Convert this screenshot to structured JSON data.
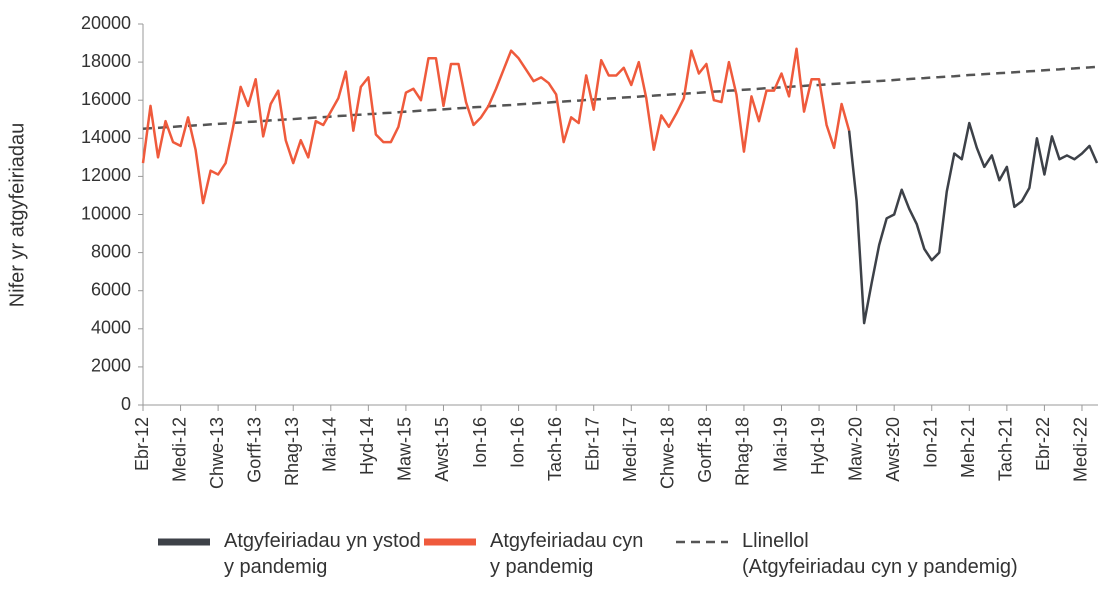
{
  "chart_data": {
    "type": "line",
    "y_label": "Nifer yr atgyfeiriadau",
    "ylim": [
      0,
      20000
    ],
    "yticks": [
      0,
      2000,
      4000,
      6000,
      8000,
      10000,
      12000,
      14000,
      16000,
      18000,
      20000
    ],
    "grid": false,
    "legend": "bottom",
    "categories": [
      "Ebr-12",
      null,
      null,
      null,
      null,
      "Medi-12",
      null,
      null,
      null,
      null,
      "Chwe-13",
      null,
      null,
      null,
      null,
      "Gorff-13",
      null,
      null,
      null,
      null,
      "Rhag-13",
      null,
      null,
      null,
      null,
      "Mai-14",
      null,
      null,
      null,
      null,
      "Hyd-14",
      null,
      null,
      null,
      null,
      "Maw-15",
      null,
      null,
      null,
      null,
      "Awst-15",
      null,
      null,
      null,
      null,
      "Ion-16",
      null,
      null,
      null,
      null,
      "Ion-16",
      null,
      null,
      null,
      null,
      "Tach-16",
      null,
      null,
      null,
      null,
      "Ebr-17",
      null,
      null,
      null,
      null,
      "Medi-17",
      null,
      null,
      null,
      null,
      "Chwe-18",
      null,
      null,
      null,
      null,
      "Gorff-18",
      null,
      null,
      null,
      null,
      "Rhag-18",
      null,
      null,
      null,
      null,
      "Mai-19",
      null,
      null,
      null,
      null,
      "Hyd-19",
      null,
      null,
      null,
      null,
      "Maw-20",
      null,
      null,
      null,
      null,
      "Awst-20",
      null,
      null,
      null,
      null,
      "Ion-21",
      null,
      null,
      null,
      null,
      "Meh-21",
      null,
      null,
      null,
      null,
      "Tach-21",
      null,
      null,
      null,
      null,
      "Ebr-22",
      null,
      null,
      null,
      null,
      "Medi-22",
      null,
      null
    ],
    "series": [
      {
        "name": "Atgyfeiriadau yn ystod y pandemig",
        "color": "#3d4148",
        "dash": false,
        "values": [
          null,
          null,
          null,
          null,
          null,
          null,
          null,
          null,
          null,
          null,
          null,
          null,
          null,
          null,
          null,
          null,
          null,
          null,
          null,
          null,
          null,
          null,
          null,
          null,
          null,
          null,
          null,
          null,
          null,
          null,
          null,
          null,
          null,
          null,
          null,
          null,
          null,
          null,
          null,
          null,
          null,
          null,
          null,
          null,
          null,
          null,
          null,
          null,
          null,
          null,
          null,
          null,
          null,
          null,
          null,
          null,
          null,
          null,
          null,
          null,
          null,
          null,
          null,
          null,
          null,
          null,
          null,
          null,
          null,
          null,
          null,
          null,
          null,
          null,
          null,
          null,
          null,
          null,
          null,
          null,
          null,
          null,
          null,
          null,
          null,
          null,
          null,
          null,
          null,
          null,
          null,
          null,
          null,
          null,
          14400,
          10700,
          4300,
          6400,
          8400,
          9800,
          10000,
          11300,
          10300,
          9500,
          8200,
          7600,
          8000,
          11200,
          13200,
          12900,
          14800,
          13500,
          12500,
          13100,
          11800,
          12500,
          10400,
          10700,
          11400,
          14000,
          12100,
          14100,
          12900,
          13100,
          12900,
          13200,
          13600,
          12700
        ]
      },
      {
        "name": "Atgyfeiriadau cyn y pandemig",
        "color": "#ef5a3c",
        "dash": false,
        "values": [
          12700,
          15700,
          13000,
          14900,
          13800,
          13600,
          15100,
          13400,
          10600,
          12300,
          12100,
          12700,
          14600,
          16700,
          15700,
          17100,
          14100,
          15800,
          16500,
          13900,
          12700,
          13900,
          13000,
          14900,
          14700,
          15400,
          16100,
          17500,
          14400,
          16700,
          17200,
          14200,
          13800,
          13800,
          14600,
          16400,
          16600,
          16000,
          18200,
          18200,
          15700,
          17900,
          17900,
          15900,
          14700,
          15100,
          15700,
          16600,
          17600,
          18600,
          18200,
          17600,
          17000,
          17200,
          16900,
          16300,
          13800,
          15100,
          14800,
          17300,
          15500,
          18100,
          17300,
          17300,
          17700,
          16800,
          18000,
          16100,
          13400,
          15200,
          14600,
          15300,
          16100,
          18600,
          17400,
          17900,
          16000,
          15900,
          18000,
          16300,
          13300,
          16200,
          14900,
          16500,
          16500,
          17400,
          16200,
          18700,
          15400,
          17100,
          17100,
          14700,
          13500,
          15800,
          14400,
          null,
          null,
          null,
          null,
          null,
          null,
          null,
          null,
          null,
          null,
          null,
          null,
          null,
          null,
          null,
          null,
          null,
          null,
          null,
          null,
          null,
          null,
          null,
          null,
          null,
          null,
          null,
          null,
          null,
          null,
          null,
          null,
          null
        ]
      },
      {
        "name": "Llinellol (Atgyfeiriadau cyn y pandemig)",
        "color": "#555555",
        "dash": true,
        "values": [
          14500,
          14530,
          14550,
          14580,
          14600,
          14630,
          14650,
          14680,
          14700,
          14730,
          14760,
          14780,
          14810,
          14830,
          14860,
          14880,
          14910,
          14940,
          14960,
          14990,
          15010,
          15040,
          15060,
          15090,
          15110,
          15140,
          15170,
          15190,
          15220,
          15240,
          15270,
          15290,
          15320,
          15340,
          15370,
          15400,
          15420,
          15450,
          15470,
          15500,
          15520,
          15550,
          15580,
          15600,
          15630,
          15650,
          15680,
          15700,
          15730,
          15750,
          15780,
          15810,
          15830,
          15860,
          15880,
          15910,
          15930,
          15960,
          15980,
          16010,
          16040,
          16060,
          16090,
          16110,
          16140,
          16160,
          16190,
          16220,
          16240,
          16270,
          16290,
          16320,
          16340,
          16370,
          16390,
          16420,
          16450,
          16470,
          16500,
          16520,
          16550,
          16570,
          16600,
          16630,
          16650,
          16680,
          16700,
          16730,
          16750,
          16780,
          16800,
          16830,
          16860,
          16880,
          16910,
          16930,
          16960,
          16980,
          17010,
          17030,
          17060,
          17090,
          17110,
          17140,
          17160,
          17190,
          17210,
          17240,
          17260,
          17290,
          17320,
          17340,
          17370,
          17390,
          17420,
          17440,
          17470,
          17490,
          17520,
          17540,
          17570,
          17600,
          17620,
          17650,
          17670,
          17700,
          17720,
          17750
        ]
      }
    ]
  }
}
